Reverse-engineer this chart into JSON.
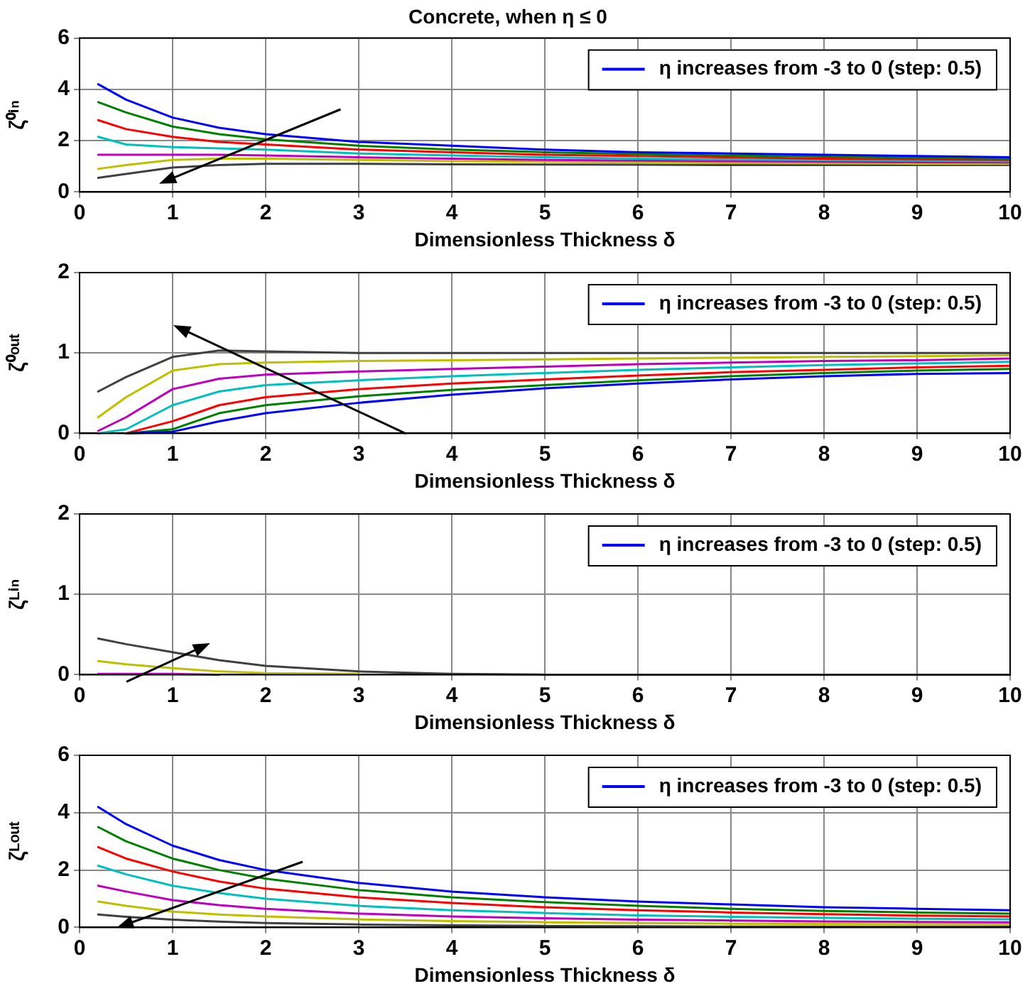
{
  "chart_data": [
    {
      "type": "line",
      "title": "Concrete, when η ≤ 0",
      "xlabel": "Dimensionless Thickness δ",
      "ylabel": "ζ⁰ⁱⁿ",
      "x": [
        0.2,
        0.5,
        1,
        1.5,
        2,
        3,
        4,
        5,
        6,
        7,
        8,
        9,
        10
      ],
      "xlim": [
        0,
        10
      ],
      "xticks": [
        0,
        1,
        2,
        3,
        4,
        5,
        6,
        7,
        8,
        9,
        10
      ],
      "ylim": [
        0,
        6
      ],
      "yticks": [
        0,
        2,
        4,
        6
      ],
      "grid": true,
      "legend": "top right",
      "line_style": "solid",
      "series": [
        {
          "name": "η increases from -3 to 0 (step: 0.5)",
          "color": "#0000ff",
          "values": [
            4.2,
            3.6,
            2.9,
            2.5,
            2.25,
            1.95,
            1.8,
            1.65,
            1.55,
            1.5,
            1.45,
            1.4,
            1.35
          ]
        },
        {
          "color": "#008000",
          "values": [
            3.5,
            3.1,
            2.55,
            2.25,
            2.05,
            1.8,
            1.65,
            1.55,
            1.48,
            1.42,
            1.38,
            1.34,
            1.3
          ]
        },
        {
          "color": "#ff0000",
          "values": [
            2.8,
            2.45,
            2.15,
            1.95,
            1.85,
            1.65,
            1.55,
            1.45,
            1.4,
            1.35,
            1.3,
            1.28,
            1.25
          ]
        },
        {
          "color": "#00bfbf",
          "values": [
            2.15,
            1.85,
            1.75,
            1.7,
            1.65,
            1.5,
            1.42,
            1.35,
            1.3,
            1.27,
            1.24,
            1.22,
            1.2
          ]
        },
        {
          "color": "#bf00bf",
          "values": [
            1.45,
            1.45,
            1.45,
            1.45,
            1.42,
            1.35,
            1.3,
            1.25,
            1.22,
            1.2,
            1.18,
            1.16,
            1.15
          ]
        },
        {
          "color": "#bfbf00",
          "values": [
            0.9,
            1.05,
            1.25,
            1.3,
            1.3,
            1.25,
            1.2,
            1.18,
            1.15,
            1.13,
            1.12,
            1.1,
            1.1
          ]
        },
        {
          "color": "#404040",
          "values": [
            0.55,
            0.7,
            0.95,
            1.05,
            1.1,
            1.1,
            1.08,
            1.07,
            1.06,
            1.05,
            1.05,
            1.05,
            1.05
          ]
        }
      ]
    },
    {
      "type": "line",
      "xlabel": "Dimensionless Thickness δ",
      "ylabel": "ζ⁰ᵒᵘᵗ",
      "x": [
        0.2,
        0.5,
        1,
        1.5,
        2,
        3,
        4,
        5,
        6,
        7,
        8,
        9,
        10
      ],
      "xlim": [
        0,
        10
      ],
      "xticks": [
        0,
        1,
        2,
        3,
        4,
        5,
        6,
        7,
        8,
        9,
        10
      ],
      "ylim": [
        0,
        2
      ],
      "yticks": [
        0,
        1,
        2
      ],
      "grid": true,
      "legend": "top right",
      "line_style": "solid",
      "series": [
        {
          "name": "η increases from -3 to 0 (step: 0.5)",
          "color": "#0000ff",
          "values": [
            null,
            0,
            0.02,
            0.15,
            0.25,
            0.38,
            0.48,
            0.56,
            0.62,
            0.67,
            0.71,
            0.74,
            0.75
          ]
        },
        {
          "color": "#008000",
          "values": [
            null,
            0,
            0.05,
            0.25,
            0.35,
            0.46,
            0.54,
            0.6,
            0.66,
            0.71,
            0.75,
            0.78,
            0.8
          ]
        },
        {
          "color": "#ff0000",
          "values": [
            null,
            0,
            0.15,
            0.35,
            0.45,
            0.55,
            0.62,
            0.67,
            0.72,
            0.76,
            0.79,
            0.82,
            0.84
          ]
        },
        {
          "color": "#00bfbf",
          "values": [
            0,
            0.05,
            0.35,
            0.52,
            0.6,
            0.66,
            0.71,
            0.75,
            0.79,
            0.82,
            0.85,
            0.87,
            0.89
          ]
        },
        {
          "color": "#bf00bf",
          "values": [
            0.03,
            0.2,
            0.55,
            0.68,
            0.73,
            0.77,
            0.8,
            0.83,
            0.86,
            0.88,
            0.9,
            0.91,
            0.93
          ]
        },
        {
          "color": "#bfbf00",
          "values": [
            0.2,
            0.45,
            0.78,
            0.86,
            0.88,
            0.9,
            0.91,
            0.92,
            0.93,
            0.94,
            0.95,
            0.96,
            0.97
          ]
        },
        {
          "color": "#404040",
          "values": [
            0.52,
            0.7,
            0.95,
            1.03,
            1.02,
            1.0,
            1.0,
            1.0,
            1.0,
            1.0,
            1.0,
            1.0,
            1.0
          ]
        }
      ]
    },
    {
      "type": "line",
      "xlabel": "Dimensionless Thickness δ",
      "ylabel": "ζᴸⁱⁿ",
      "x": [
        0.2,
        0.5,
        1,
        1.5,
        2,
        3,
        4,
        5,
        6,
        7,
        8,
        9,
        10
      ],
      "xlim": [
        0,
        10
      ],
      "xticks": [
        0,
        1,
        2,
        3,
        4,
        5,
        6,
        7,
        8,
        9,
        10
      ],
      "ylim": [
        0,
        2
      ],
      "yticks": [
        0,
        1,
        2
      ],
      "grid": true,
      "legend": "top right",
      "line_style": "solid",
      "series": [
        {
          "name": "η increases from -3 to 0 (step: 0.5)",
          "color": "#0000ff",
          "values": [
            null,
            null,
            null,
            null,
            null,
            null,
            null,
            null,
            null,
            null,
            null,
            null,
            null
          ]
        },
        {
          "color": "#008000",
          "values": [
            null,
            null,
            null,
            null,
            null,
            null,
            null,
            null,
            null,
            null,
            null,
            null,
            null
          ]
        },
        {
          "color": "#ff0000",
          "values": [
            null,
            null,
            null,
            null,
            null,
            null,
            null,
            null,
            null,
            null,
            null,
            null,
            null
          ]
        },
        {
          "color": "#00bfbf",
          "values": [
            null,
            null,
            null,
            null,
            null,
            null,
            null,
            null,
            null,
            null,
            null,
            null,
            null
          ]
        },
        {
          "color": "#bf00bf",
          "values": [
            0.01,
            0.01,
            0.01,
            0,
            null,
            null,
            null,
            null,
            null,
            null,
            null,
            null,
            null
          ]
        },
        {
          "color": "#bfbf00",
          "values": [
            0.17,
            0.13,
            0.08,
            0.04,
            0.02,
            0.01,
            null,
            null,
            null,
            null,
            null,
            null,
            null
          ]
        },
        {
          "color": "#404040",
          "values": [
            0.45,
            0.38,
            0.28,
            0.18,
            0.11,
            0.04,
            0.01,
            0,
            0,
            0,
            0,
            0,
            0
          ]
        }
      ]
    },
    {
      "type": "line",
      "xlabel": "Dimensionless Thickness δ",
      "ylabel": "ζᴸᵒᵘᵗ",
      "x": [
        0.2,
        0.5,
        1,
        1.5,
        2,
        3,
        4,
        5,
        6,
        7,
        8,
        9,
        10
      ],
      "xlim": [
        0,
        10
      ],
      "xticks": [
        0,
        1,
        2,
        3,
        4,
        5,
        6,
        7,
        8,
        9,
        10
      ],
      "ylim": [
        0,
        6
      ],
      "yticks": [
        0,
        2,
        4,
        6
      ],
      "grid": true,
      "legend": "top right",
      "line_style": "solid",
      "series": [
        {
          "name": "η increases from -3 to 0 (step: 0.5)",
          "color": "#0000ff",
          "values": [
            4.2,
            3.6,
            2.85,
            2.35,
            2.0,
            1.55,
            1.25,
            1.05,
            0.9,
            0.8,
            0.7,
            0.65,
            0.6
          ]
        },
        {
          "color": "#008000",
          "values": [
            3.5,
            3.0,
            2.4,
            2.0,
            1.7,
            1.3,
            1.05,
            0.88,
            0.75,
            0.65,
            0.57,
            0.52,
            0.48
          ]
        },
        {
          "color": "#ff0000",
          "values": [
            2.8,
            2.4,
            1.95,
            1.6,
            1.35,
            1.05,
            0.85,
            0.7,
            0.6,
            0.52,
            0.46,
            0.41,
            0.38
          ]
        },
        {
          "color": "#00bfbf",
          "values": [
            2.15,
            1.85,
            1.45,
            1.2,
            1.0,
            0.75,
            0.6,
            0.5,
            0.42,
            0.37,
            0.33,
            0.3,
            0.28
          ]
        },
        {
          "color": "#bf00bf",
          "values": [
            1.45,
            1.25,
            0.95,
            0.78,
            0.65,
            0.48,
            0.38,
            0.32,
            0.27,
            0.24,
            0.21,
            0.19,
            0.18
          ]
        },
        {
          "color": "#bfbf00",
          "values": [
            0.9,
            0.75,
            0.55,
            0.45,
            0.38,
            0.28,
            0.22,
            0.18,
            0.15,
            0.13,
            0.12,
            0.11,
            0.1
          ]
        },
        {
          "color": "#404040",
          "values": [
            0.45,
            0.37,
            0.27,
            0.2,
            0.15,
            0.1,
            0.07,
            0.05,
            0.04,
            0.03,
            0.03,
            0.02,
            0.02
          ]
        }
      ]
    }
  ]
}
